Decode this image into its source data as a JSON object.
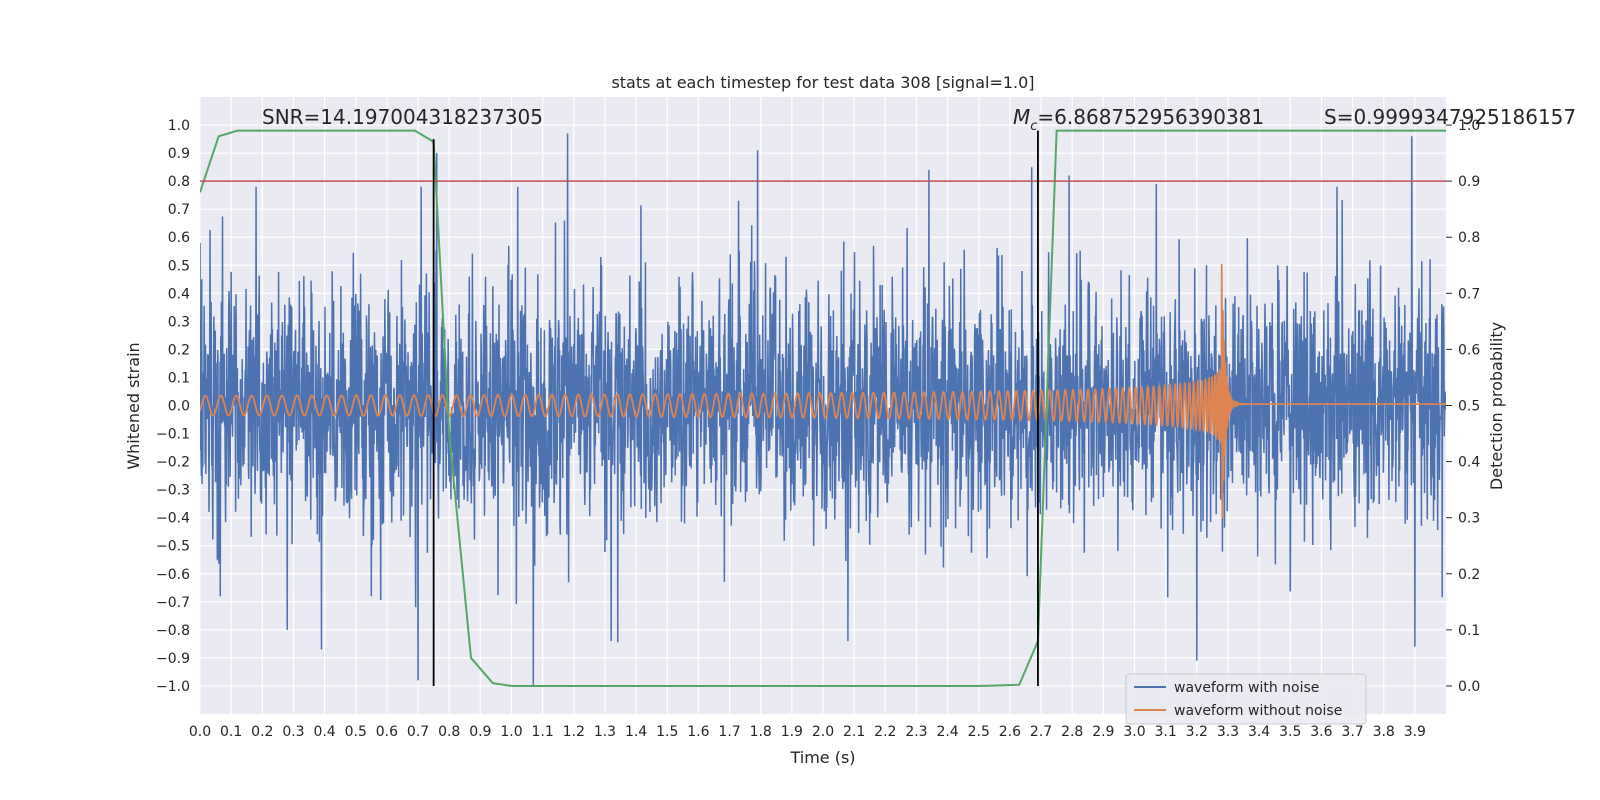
{
  "chart_data": {
    "type": "line",
    "title": "stats at each timestep for test data 308 [signal=1.0]",
    "xlabel": "Time (s)",
    "ylabel": "Whitened strain",
    "ylabel_right": "Detection probability",
    "xlim": [
      0.0,
      4.0
    ],
    "ylim": [
      -1.1,
      1.1
    ],
    "ylim_right": [
      -0.05,
      1.05
    ],
    "grid": true,
    "x_ticks": [
      "0.0",
      "0.1",
      "0.2",
      "0.3",
      "0.4",
      "0.5",
      "0.6",
      "0.7",
      "0.8",
      "0.9",
      "1.0",
      "1.1",
      "1.2",
      "1.3",
      "1.4",
      "1.5",
      "1.6",
      "1.7",
      "1.8",
      "1.9",
      "2.0",
      "2.1",
      "2.2",
      "2.3",
      "2.4",
      "2.5",
      "2.6",
      "2.7",
      "2.8",
      "2.9",
      "3.0",
      "3.1",
      "3.2",
      "3.3",
      "3.4",
      "3.5",
      "3.6",
      "3.7",
      "3.8",
      "3.9"
    ],
    "y_ticks": [
      "1.0",
      "0.9",
      "0.8",
      "0.7",
      "0.6",
      "0.5",
      "0.4",
      "0.3",
      "0.2",
      "0.1",
      "0.0",
      "−0.1",
      "−0.2",
      "−0.3",
      "−0.4",
      "−0.5",
      "−0.6",
      "−0.7",
      "−0.8",
      "−0.9",
      "−1.0"
    ],
    "y_ticks_right": [
      "1.0",
      "0.9",
      "0.8",
      "0.7",
      "0.6",
      "0.5",
      "0.4",
      "0.3",
      "0.2",
      "0.1",
      "0.0"
    ],
    "annotations": {
      "snr": "SNR=14.197004318237305",
      "mc_symbol": "M",
      "mc_sub": "c",
      "mc_value": "=6.868752956390381",
      "s": "S=0.9999347925186157"
    },
    "legend": {
      "position": "lower-right",
      "entries": [
        "waveform with noise",
        "waveform without noise"
      ]
    },
    "colors": {
      "noise": "#4c72b0",
      "clean": "#dd8452",
      "probability": "#55a868",
      "threshold": "#c44e52",
      "marker": "#000000",
      "background": "#eaeaf2",
      "grid": "#ffffff"
    },
    "series": [
      {
        "name": "waveform with noise",
        "axis": "left",
        "description_type": "noise",
        "peaks": [
          {
            "x": 0.0,
            "y": 0.58
          },
          {
            "x": 0.065,
            "y": -0.68
          },
          {
            "x": 0.18,
            "y": 0.78
          },
          {
            "x": 0.28,
            "y": -0.8
          },
          {
            "x": 0.39,
            "y": -0.87
          },
          {
            "x": 0.55,
            "y": -0.68
          },
          {
            "x": 0.7,
            "y": -0.98
          },
          {
            "x": 0.71,
            "y": 0.78
          },
          {
            "x": 0.76,
            "y": 0.9
          },
          {
            "x": 1.02,
            "y": 0.78
          },
          {
            "x": 1.07,
            "y": -1.0
          },
          {
            "x": 1.18,
            "y": 0.97
          },
          {
            "x": 1.32,
            "y": -0.84
          },
          {
            "x": 1.79,
            "y": 0.91
          },
          {
            "x": 2.08,
            "y": -0.84
          },
          {
            "x": 2.34,
            "y": 0.84
          },
          {
            "x": 2.67,
            "y": 0.85
          },
          {
            "x": 2.79,
            "y": 0.82
          },
          {
            "x": 3.07,
            "y": 0.79
          },
          {
            "x": 3.2,
            "y": -0.91
          },
          {
            "x": 3.65,
            "y": 0.78
          },
          {
            "x": 3.89,
            "y": 0.96
          },
          {
            "x": 3.9,
            "y": 0.87
          },
          {
            "x": 3.9,
            "y": -0.86
          }
        ],
        "rms": 0.18
      },
      {
        "name": "waveform without noise",
        "axis": "left",
        "description_type": "chirp",
        "start_amplitude": 0.035,
        "start_frequency_hz": 20,
        "merger_time": 3.28,
        "merger_amplitude": 0.5,
        "postmerger_amplitude": 0.005
      },
      {
        "name": "detection probability",
        "axis": "right",
        "x": [
          0.0,
          0.06,
          0.12,
          0.25,
          0.5,
          0.69,
          0.75,
          0.8,
          0.87,
          0.94,
          1.0,
          1.5,
          2.0,
          2.5,
          2.63,
          2.69,
          2.75,
          3.0,
          3.5,
          4.0
        ],
        "y": [
          0.88,
          0.98,
          0.99,
          0.99,
          0.99,
          0.99,
          0.97,
          0.45,
          0.05,
          0.005,
          0.0,
          0.0,
          0.0,
          0.0,
          0.002,
          0.08,
          0.99,
          0.99,
          0.99,
          0.99
        ]
      }
    ],
    "threshold_right": 0.9,
    "markers_x": [
      0.75,
      2.69
    ]
  }
}
